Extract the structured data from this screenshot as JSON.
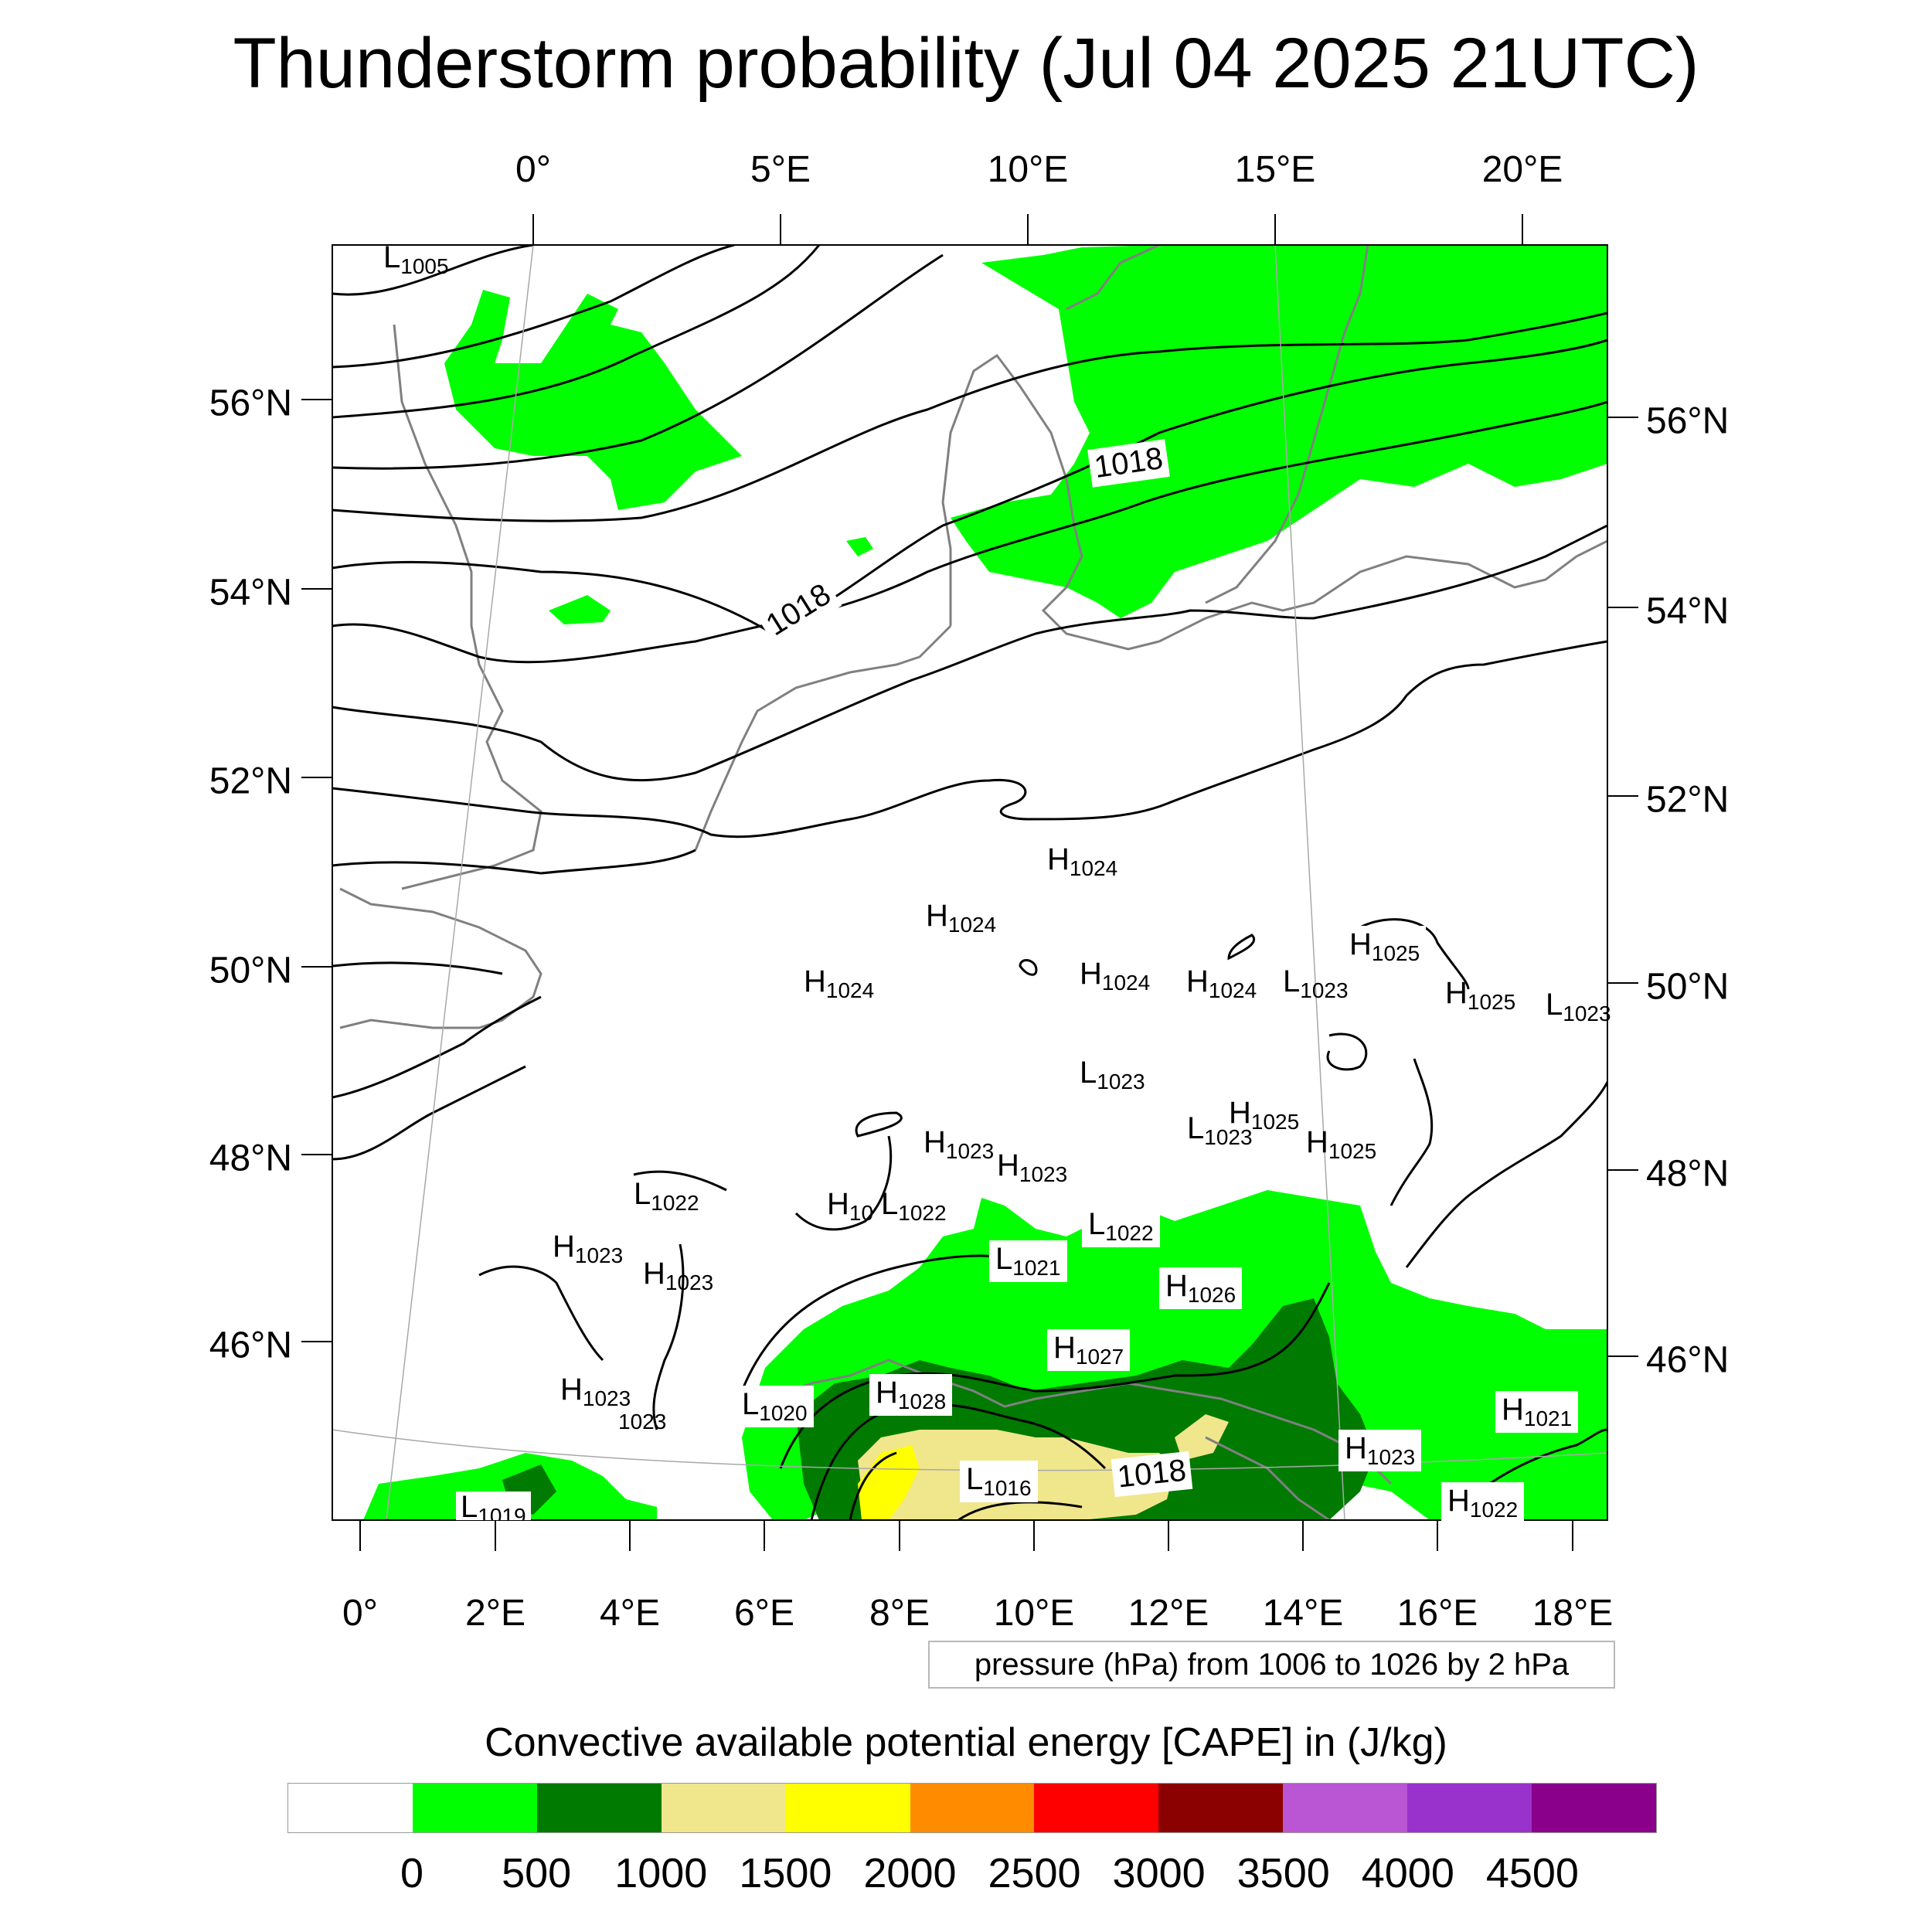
{
  "title": "Thunderstorm probability (Jul 04 2025 21UTC)",
  "top_lon_labels": [
    "0°",
    "5°E",
    "10°E",
    "15°E",
    "20°E"
  ],
  "bottom_lon_labels": [
    "0°",
    "2°E",
    "4°E",
    "6°E",
    "8°E",
    "10°E",
    "12°E",
    "14°E",
    "16°E",
    "18°E"
  ],
  "left_lat_labels": [
    "56°N",
    "54°N",
    "52°N",
    "50°N",
    "48°N",
    "46°N"
  ],
  "right_lat_labels": [
    "56°N",
    "54°N",
    "52°N",
    "50°N",
    "48°N",
    "46°N"
  ],
  "pressure_labels": [
    {
      "type": "L",
      "value": "1005"
    },
    {
      "type": "H",
      "value": "1024"
    },
    {
      "type": "H",
      "value": "1024"
    },
    {
      "type": "H",
      "value": "1024"
    },
    {
      "type": "H",
      "value": "1024"
    },
    {
      "type": "H",
      "value": "1024"
    },
    {
      "type": "L",
      "value": "1023"
    },
    {
      "type": "H",
      "value": "1025"
    },
    {
      "type": "H",
      "value": "1025"
    },
    {
      "type": "L",
      "value": "1023"
    },
    {
      "type": "L",
      "value": "1023"
    },
    {
      "type": "H",
      "value": "1025"
    },
    {
      "type": "L",
      "value": "1023"
    },
    {
      "type": "H",
      "value": "1025"
    },
    {
      "type": "H",
      "value": "1023"
    },
    {
      "type": "H",
      "value": "1023"
    },
    {
      "type": "L",
      "value": "1022"
    },
    {
      "type": "H",
      "value": "10"
    },
    {
      "type": "L",
      "value": "1022"
    },
    {
      "type": "L",
      "value": "1022"
    },
    {
      "type": "L",
      "value": "1021"
    },
    {
      "type": "H",
      "value": "1023"
    },
    {
      "type": "H",
      "value": "1023"
    },
    {
      "type": "H",
      "value": "1026"
    },
    {
      "type": "H",
      "value": "1027"
    },
    {
      "type": "H",
      "value": "1023"
    },
    {
      "type": "",
      "value": "1023"
    },
    {
      "type": "L",
      "value": "1020"
    },
    {
      "type": "H",
      "value": "1028"
    },
    {
      "type": "L",
      "value": "1016"
    },
    {
      "type": "H",
      "value": "1021"
    },
    {
      "type": "H",
      "value": "1023"
    },
    {
      "type": "H",
      "value": "1022"
    },
    {
      "type": "L",
      "value": "1019"
    }
  ],
  "contour_labels": [
    "1018",
    "1018",
    "1018"
  ],
  "info_text": "pressure (hPa) from 1006 to 1026 by 2 hPa",
  "colorbar_title": "Convective available potential energy [CAPE] in (J/kg)",
  "colorbar_labels": [
    "0",
    "500",
    "1000",
    "1500",
    "2000",
    "2500",
    "3000",
    "3500",
    "4000",
    "4500"
  ],
  "colorbar_colors": [
    "#ffffff",
    "#00ff00",
    "#007a00",
    "#f0e68c",
    "#ffff00",
    "#ff8c00",
    "#ff0000",
    "#8b0000",
    "#ba55d3",
    "#9932cc",
    "#8b008b"
  ],
  "colors": {
    "cape_low": "#00ff00",
    "cape_mid": "#007a00",
    "cape_high": "#f0e68c",
    "cape_higher": "#ffff00",
    "coastline": "#808080",
    "isobar": "#000000"
  }
}
